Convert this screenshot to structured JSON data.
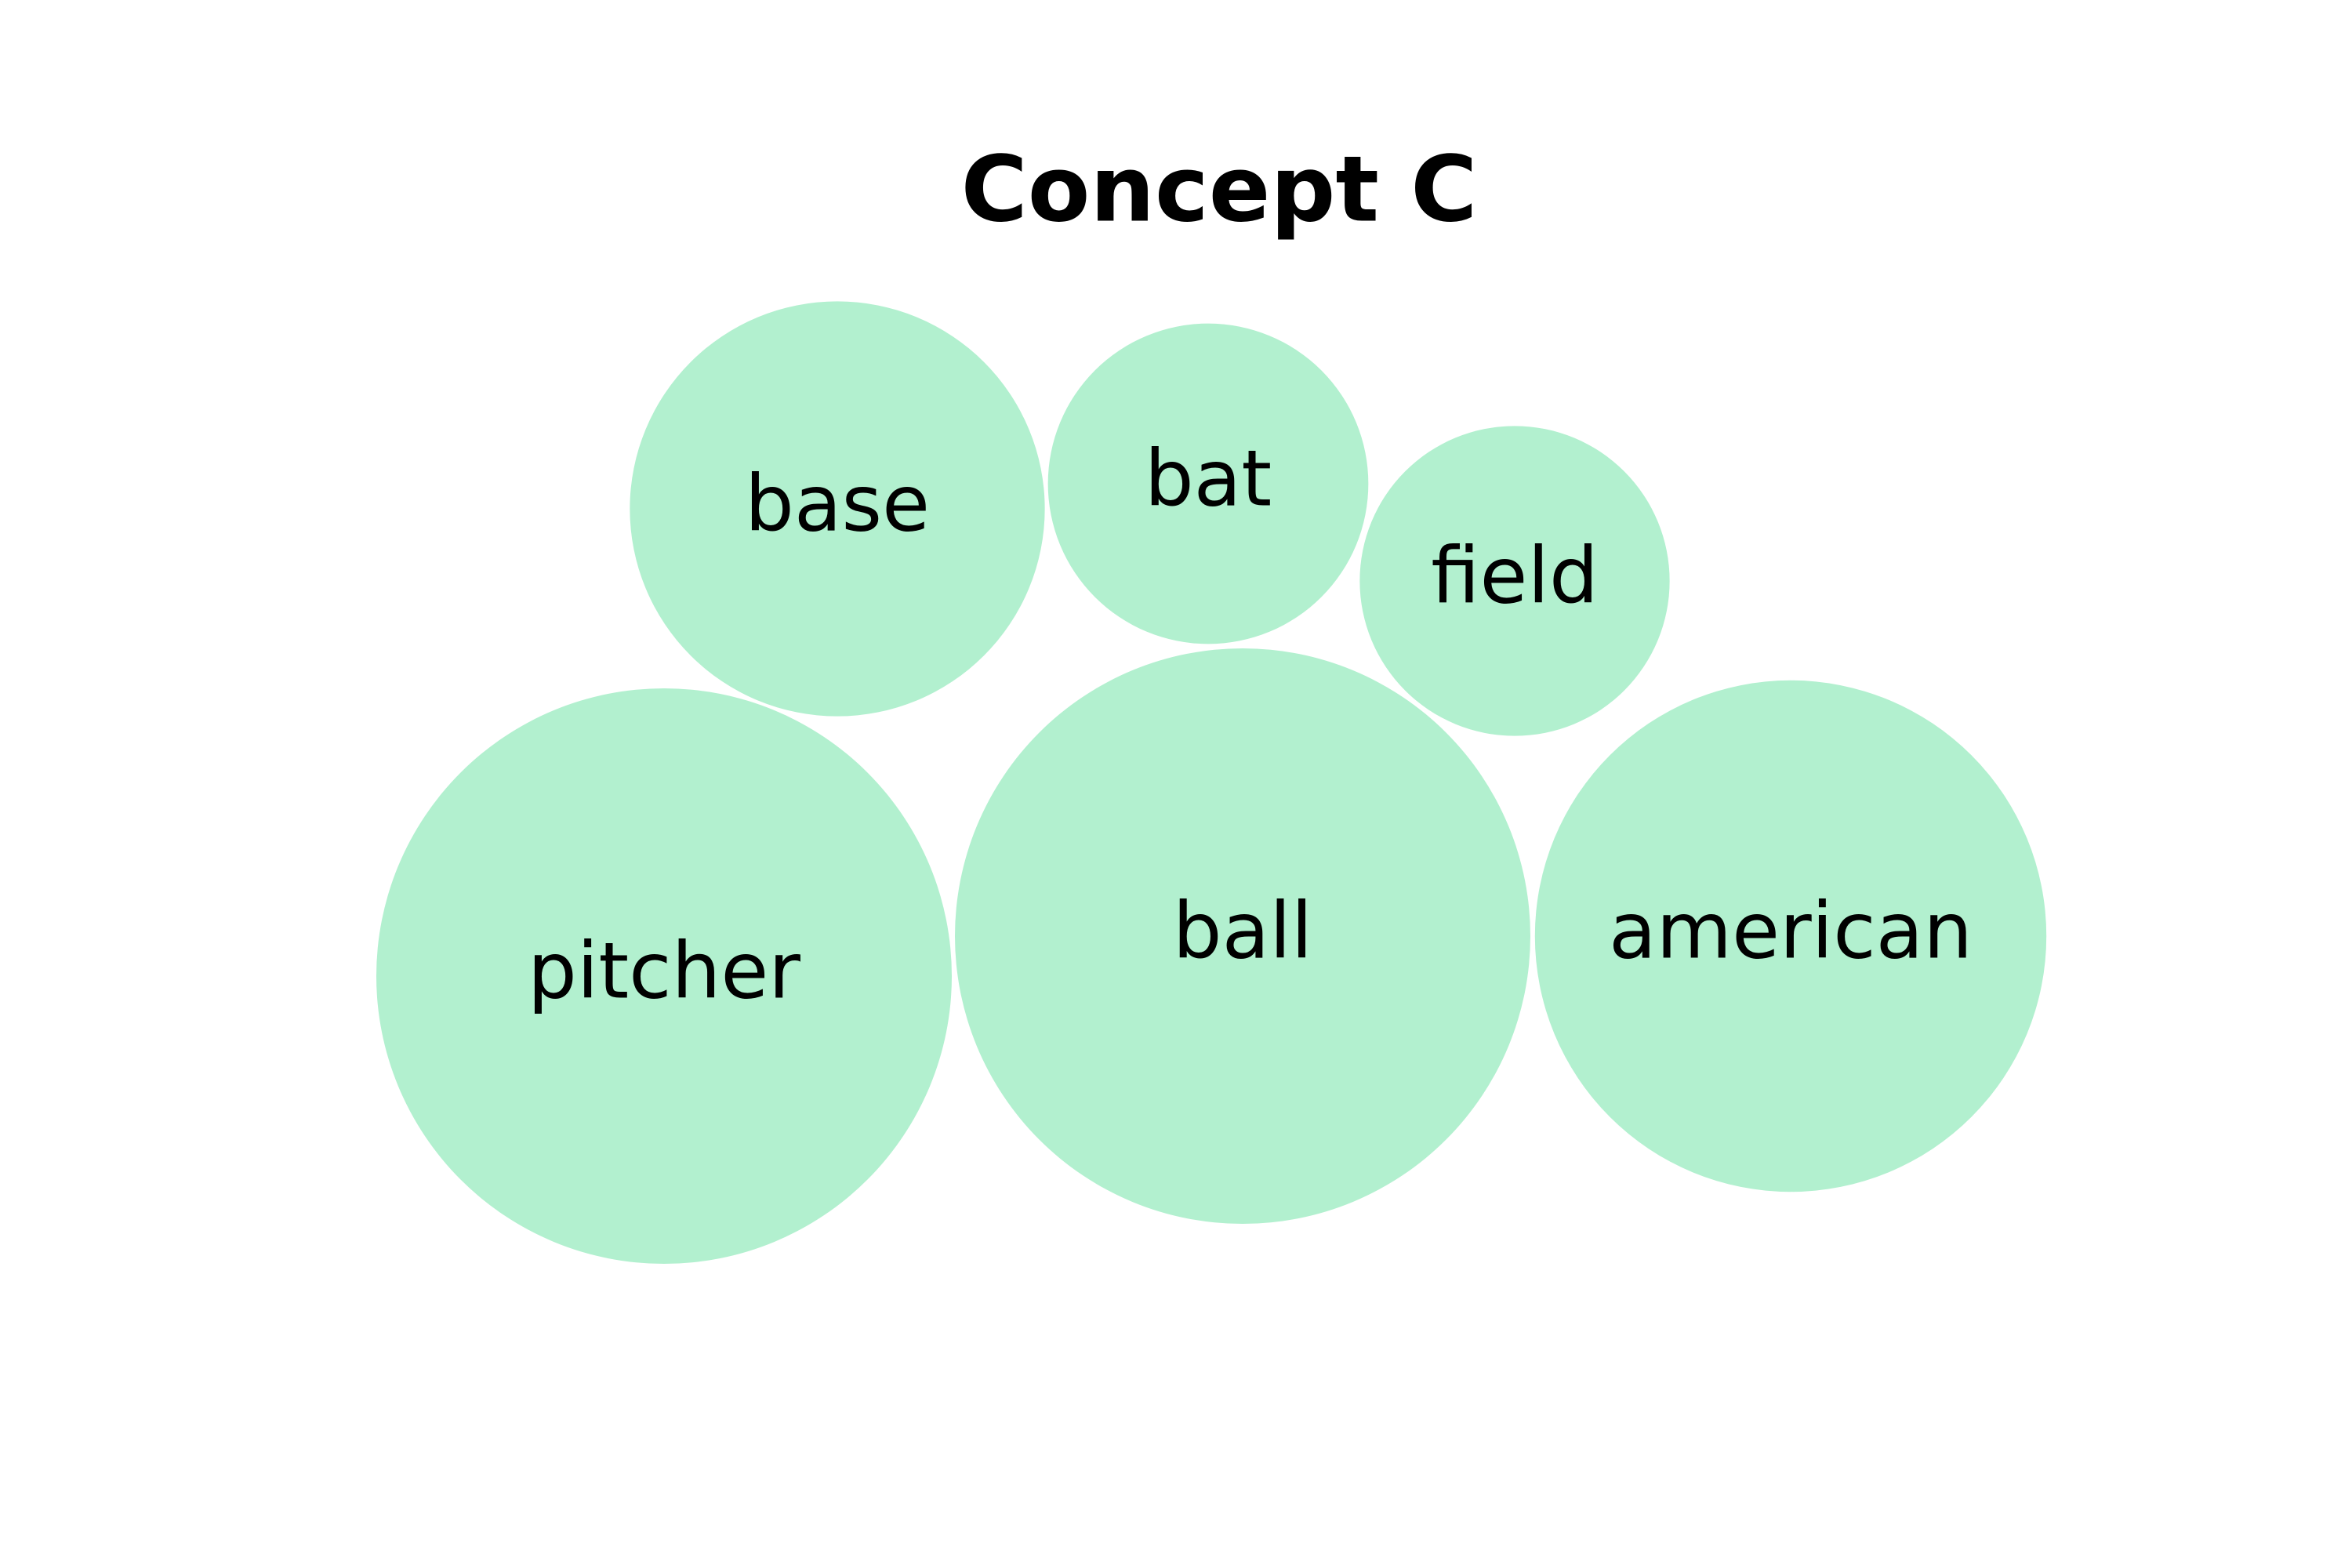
{
  "chart_data": {
    "type": "bubble",
    "title": "Concept C",
    "color": "#b2f0cf",
    "bubbles": [
      {
        "label": "base",
        "value": 0.52
      },
      {
        "label": "bat",
        "value": 0.31
      },
      {
        "label": "field",
        "value": 0.29
      },
      {
        "label": "pitcher",
        "value": 1.0
      },
      {
        "label": "ball",
        "value": 1.0
      },
      {
        "label": "american",
        "value": 0.79
      }
    ]
  }
}
